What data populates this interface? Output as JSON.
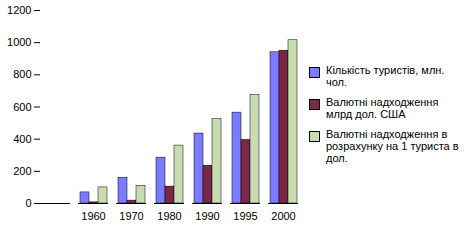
{
  "chart_data": {
    "type": "bar",
    "categories": [
      null,
      "1960",
      "1970",
      "1980",
      "1990",
      "1995",
      "2000"
    ],
    "series": [
      {
        "name": "Кількість туристів, млн. чол.",
        "color": "#7b7bff",
        "values": [
          0,
          69,
          160,
          285,
          435,
          565,
          940
        ]
      },
      {
        "name": "Валютні надходження млрд дол. США",
        "color": "#7a2848",
        "values": [
          0,
          7,
          18,
          105,
          235,
          395,
          950
        ]
      },
      {
        "name": "Валютні надходження в розрахунку на 1 туриста в дол.",
        "color": "#c8dcb0",
        "values": [
          0,
          100,
          110,
          360,
          525,
          675,
          1015
        ]
      }
    ],
    "ylim": [
      0,
      1200
    ],
    "yticks": [
      0,
      200,
      400,
      600,
      800,
      1000,
      1200
    ],
    "grid": false,
    "legend": "right"
  }
}
